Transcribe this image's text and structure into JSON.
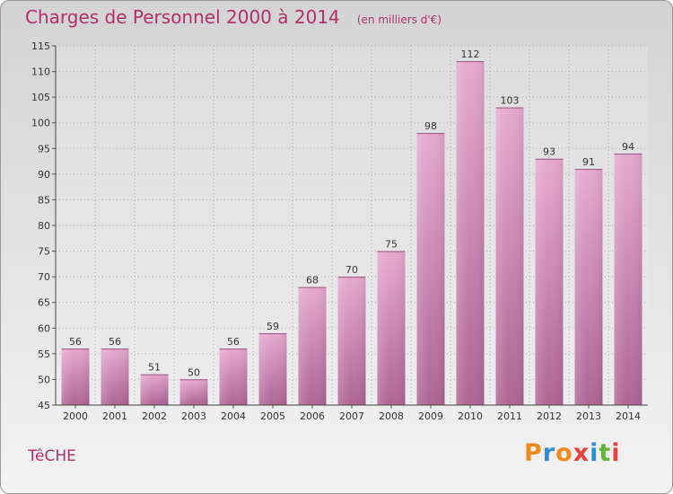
{
  "header": {
    "title": "Charges de Personnel 2000 à 2014",
    "subtitle": "(en milliers d'€)"
  },
  "footer": {
    "town": "TêCHE",
    "logo": {
      "letters": [
        "P",
        "r",
        "o",
        "x",
        "i",
        "t",
        "i"
      ],
      "colors": [
        "#f08a1c",
        "#2e8fd6",
        "#f08a1c",
        "#e8413c",
        "#2e8fd6",
        "#63b33b",
        "#e8413c"
      ]
    }
  },
  "chart_data": {
    "type": "bar",
    "title": "Charges de Personnel 2000 à 2014",
    "subtitle": "(en milliers d'€)",
    "categories": [
      "2000",
      "2001",
      "2002",
      "2003",
      "2004",
      "2005",
      "2006",
      "2007",
      "2008",
      "2009",
      "2010",
      "2011",
      "2012",
      "2013",
      "2014"
    ],
    "values": [
      56,
      56,
      51,
      50,
      56,
      59,
      68,
      70,
      75,
      98,
      112,
      103,
      93,
      91,
      94
    ],
    "ylim": [
      45,
      115
    ],
    "yticks": [
      45,
      50,
      55,
      60,
      65,
      70,
      75,
      80,
      85,
      90,
      95,
      100,
      105,
      110,
      115
    ],
    "grid": true,
    "bar_color": "#d58fb9"
  }
}
